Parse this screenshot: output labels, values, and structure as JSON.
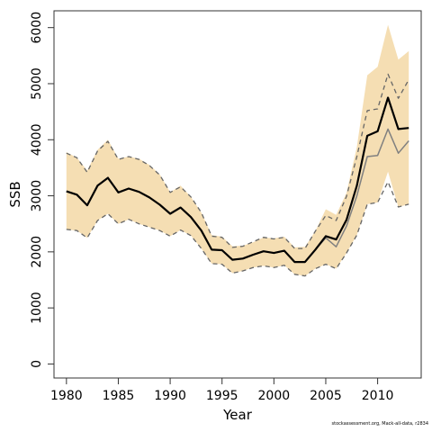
{
  "chart_data": {
    "type": "line",
    "title": "",
    "xlabel": "Year",
    "ylabel": "SSB",
    "xlim": [
      1978.8,
      2014.2
    ],
    "ylim": [
      -250,
      6300
    ],
    "x_ticks": [
      1980,
      1985,
      1990,
      1995,
      2000,
      2005,
      2010
    ],
    "y_ticks": [
      0,
      1000,
      2000,
      3000,
      4000,
      5000,
      6000
    ],
    "x": [
      1980,
      1981,
      1982,
      1983,
      1984,
      1985,
      1986,
      1987,
      1988,
      1989,
      1990,
      1991,
      1992,
      1993,
      1994,
      1995,
      1996,
      1997,
      1998,
      1999,
      2000,
      2001,
      2002,
      2003,
      2004,
      2005,
      2006,
      2007,
      2008,
      2009,
      2010,
      2011,
      2012,
      2013
    ],
    "band": {
      "lower": [
        2400,
        2380,
        2250,
        2560,
        2680,
        2500,
        2580,
        2500,
        2440,
        2380,
        2280,
        2390,
        2290,
        2060,
        1790,
        1780,
        1620,
        1660,
        1720,
        1750,
        1720,
        1760,
        1600,
        1570,
        1700,
        1780,
        1700,
        1980,
        2300,
        2850,
        2880,
        3430,
        2800,
        2850
      ],
      "upper": [
        3780,
        3680,
        3450,
        3820,
        4000,
        3660,
        3700,
        3660,
        3550,
        3380,
        3060,
        3180,
        2980,
        2700,
        2300,
        2270,
        2100,
        2110,
        2170,
        2260,
        2240,
        2270,
        2080,
        2090,
        2370,
        2760,
        2660,
        3050,
        3870,
        5150,
        5300,
        6050,
        5430,
        5580
      ]
    },
    "series": [
      {
        "values": [
          3080,
          3020,
          2830,
          3180,
          3320,
          3060,
          3130,
          3070,
          2970,
          2840,
          2680,
          2790,
          2620,
          2380,
          2040,
          2030,
          1860,
          1880,
          1950,
          2010,
          1980,
          2020,
          1820,
          1820,
          2040,
          2280,
          2220,
          2570,
          3180,
          4070,
          4150,
          4750,
          4190,
          4210
        ]
      },
      {
        "values": [
          3080,
          3020,
          2830,
          3180,
          3320,
          3060,
          3130,
          3070,
          2970,
          2840,
          2680,
          2790,
          2620,
          2380,
          2040,
          2030,
          1860,
          1880,
          1950,
          2010,
          1980,
          2020,
          1820,
          1820,
          2040,
          2250,
          2090,
          2460,
          3000,
          3700,
          3720,
          4190,
          3760,
          3980
        ]
      },
      {
        "values": [
          3760,
          3680,
          3420,
          3800,
          3970,
          3650,
          3700,
          3650,
          3540,
          3370,
          3060,
          3160,
          2980,
          2700,
          2280,
          2260,
          2080,
          2100,
          2180,
          2260,
          2230,
          2260,
          2060,
          2060,
          2370,
          2650,
          2560,
          2990,
          3700,
          4520,
          4550,
          5170,
          4740,
          5070
        ]
      },
      {
        "values": [
          2400,
          2380,
          2250,
          2560,
          2680,
          2500,
          2580,
          2500,
          2440,
          2380,
          2280,
          2390,
          2290,
          2060,
          1790,
          1780,
          1620,
          1660,
          1720,
          1750,
          1720,
          1760,
          1600,
          1570,
          1700,
          1780,
          1700,
          1980,
          2300,
          2850,
          2880,
          3250,
          2800,
          2850
        ]
      }
    ],
    "grid": false,
    "legend": "none"
  },
  "footer": {
    "credit": "stockassessment.org, Mack-all-data, r2834"
  },
  "colors": {
    "band": "#f5deb3",
    "main_line": "#000000",
    "grey_line": "#808080",
    "dashed_line": "#666666",
    "axis": "#333333"
  }
}
